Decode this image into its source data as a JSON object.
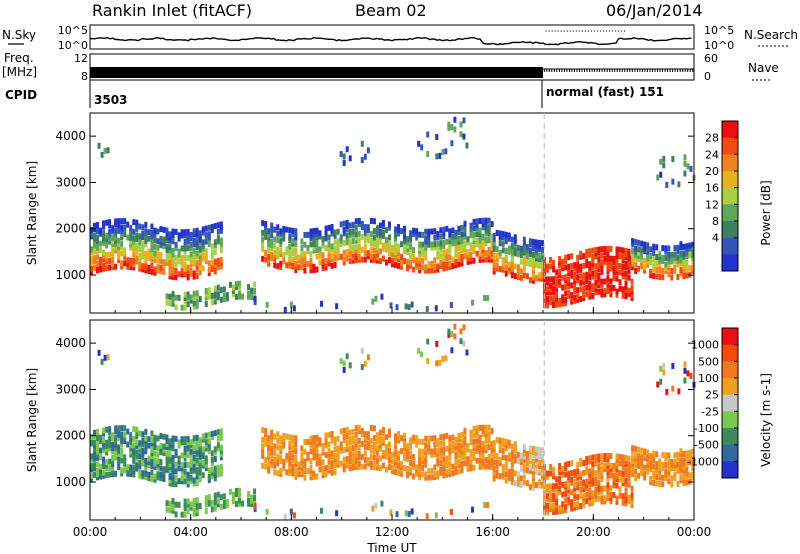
{
  "header": {
    "station": "Rankin Inlet (fitACF)",
    "beam": "Beam 02",
    "date": "06/Jan/2014"
  },
  "top_panels": {
    "nsky_label": "N.Sky",
    "nsearch_label": "N.Search",
    "freq_label": "Freq.",
    "freq_unit": "[MHz]",
    "nave_label": "Nave",
    "cpid_label": "CPID",
    "noise_ticks": [
      "10^5",
      "10^0"
    ],
    "freq_ticks": [
      "12",
      "8"
    ],
    "nave_ticks": [
      "60",
      "0"
    ],
    "cpid_first": "3503",
    "cpid_second": "normal (fast) 151"
  },
  "chart_data": [
    {
      "type": "heatmap",
      "name": "power",
      "ylabel": "Slant Range [km]",
      "xlabel": "",
      "y_ticks": [
        "1000",
        "2000",
        "3000",
        "4000"
      ],
      "x_range_hours": [
        0,
        24
      ],
      "y_range_km": [
        180,
        4500
      ],
      "colorbar_label": "Power [dB]",
      "colorbar_ticks": [
        "28",
        "24",
        "20",
        "16",
        "12",
        "8",
        "4"
      ],
      "colorbar_colors": [
        "#2233cc",
        "#3355bb",
        "#3d8060",
        "#5fa85a",
        "#a8d040",
        "#e8b020",
        "#f08020",
        "#f04a10",
        "#e81010"
      ]
    },
    {
      "type": "heatmap",
      "name": "velocity",
      "ylabel": "Slant Range [km]",
      "xlabel": "Time UT",
      "y_ticks": [
        "1000",
        "2000",
        "3000",
        "4000"
      ],
      "x_ticks": [
        "00:00",
        "04:00",
        "08:00",
        "12:00",
        "16:00",
        "20:00",
        "00:00"
      ],
      "x_range_hours": [
        0,
        24
      ],
      "y_range_km": [
        180,
        4500
      ],
      "colorbar_label": "Velocity [m s-1]",
      "colorbar_ticks": [
        "1000",
        "500",
        "100",
        "25",
        "-25",
        "-100",
        "-500",
        "-1000"
      ],
      "colorbar_colors": [
        "#2233cc",
        "#2e6a9a",
        "#3d8a5a",
        "#7ac850",
        "#c8c8c8",
        "#f0a020",
        "#f07820",
        "#f04a10",
        "#e81010"
      ]
    }
  ]
}
